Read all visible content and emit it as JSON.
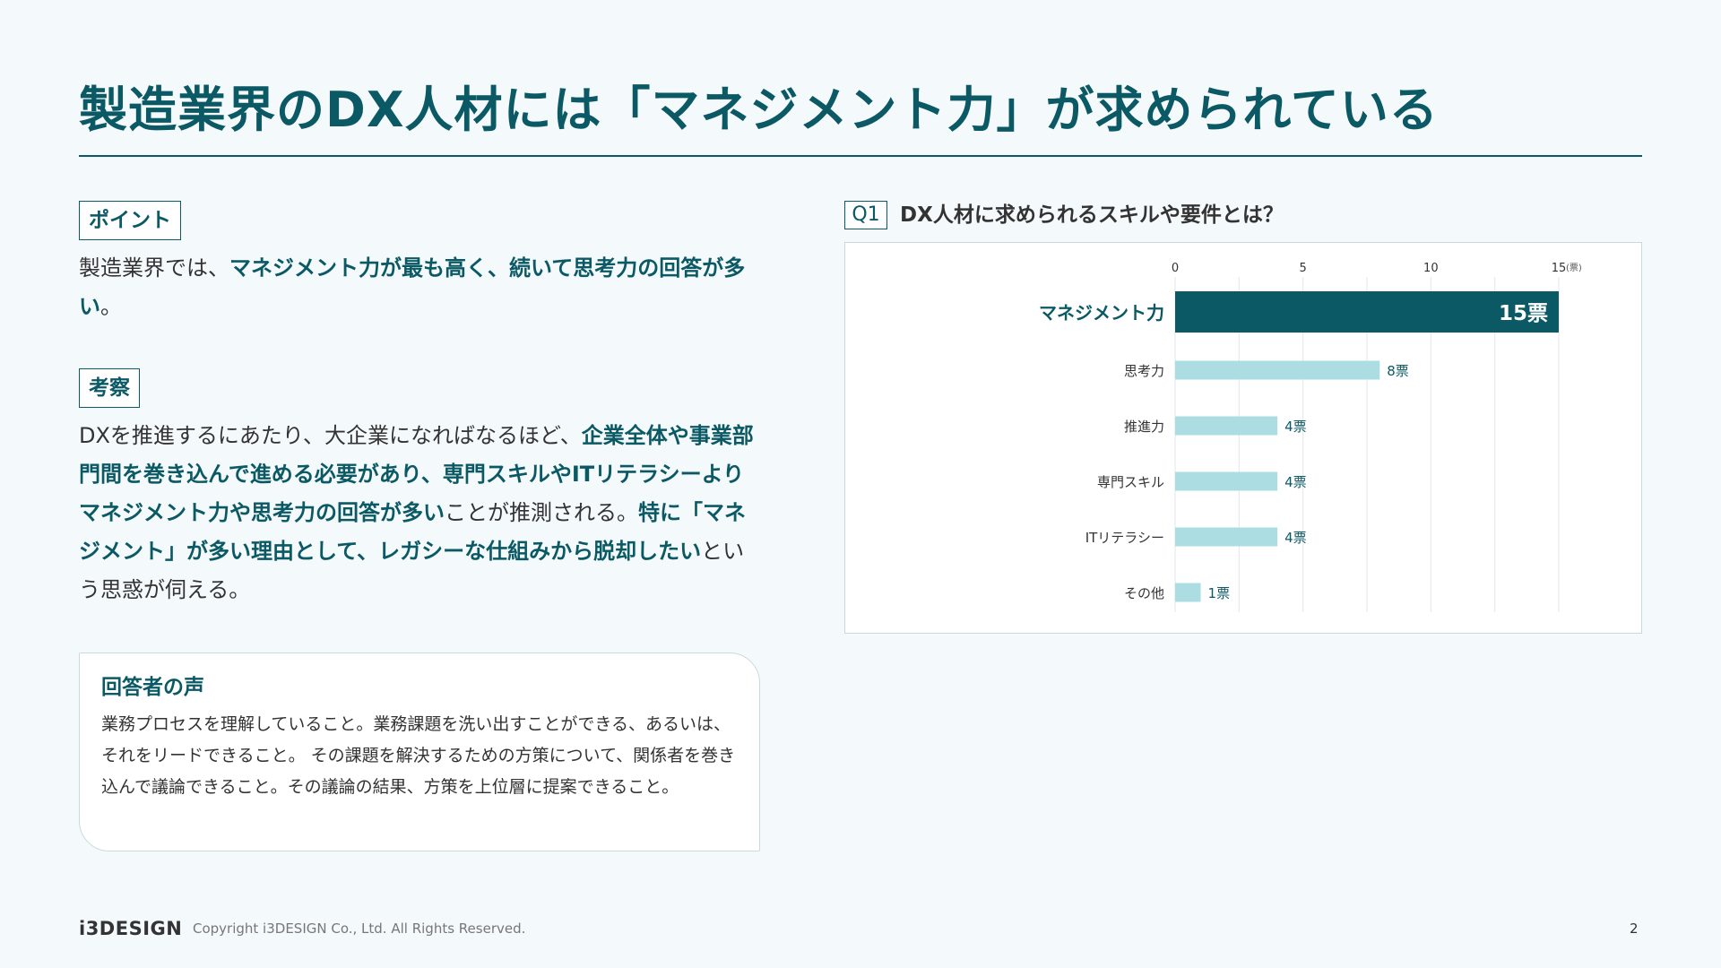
{
  "page": {
    "title": "製造業界のDX人材には「マネジメント力」が求められている",
    "page_number": "2"
  },
  "point": {
    "tag": "ポイント",
    "text_parts": [
      "製造業界では、",
      "マネジメント力が最も高く、続いて思考力の回答が多い",
      "。"
    ]
  },
  "insight": {
    "tag": "考察",
    "text_parts": [
      "DXを推進するにあたり、大企業になればなるほど、",
      "企業全体や事業部門間を巻き込んで進める必要があり、専門スキルやITリテラシーよりマネジメント力や思考力の回答が多い",
      "ことが推測される。",
      "特に「マネジメント」が多い理由として、レガシーな仕組みから脱却したい",
      "という思惑が伺える。"
    ]
  },
  "voice": {
    "title": "回答者の声",
    "text": "業務プロセスを理解していること。業務課題を洗い出すことができる、あるいは、それをリードできること。 その課題を解決するための方策について、関係者を巻き込んで議論できること。その議論の結果、方策を上位層に提案できること。"
  },
  "question": {
    "tag": "Q1",
    "text": "DX人材に求められるスキルや要件とは？"
  },
  "chart_data": {
    "type": "bar",
    "orientation": "horizontal",
    "categories": [
      "マネジメント力",
      "思考力",
      "推進力",
      "専門スキル",
      "ITリテラシー",
      "その他"
    ],
    "values": [
      15,
      8,
      4,
      4,
      4,
      1
    ],
    "value_labels": [
      "15票",
      "8票",
      "4票",
      "4票",
      "4票",
      "1票"
    ],
    "x_ticks": [
      "0",
      "5",
      "10",
      "15"
    ],
    "x_unit": "(票)",
    "xlim": [
      0,
      15
    ],
    "grid": true,
    "highlight_index": 0,
    "colors": {
      "highlight": "#0b5964",
      "bar": "#abdde3",
      "text": "#0b5964",
      "grid": "#e3e6e8"
    }
  },
  "footer": {
    "logo": "i3DESIGN",
    "copyright": "Copyright i3DESIGN Co., Ltd. All Rights Reserved."
  }
}
